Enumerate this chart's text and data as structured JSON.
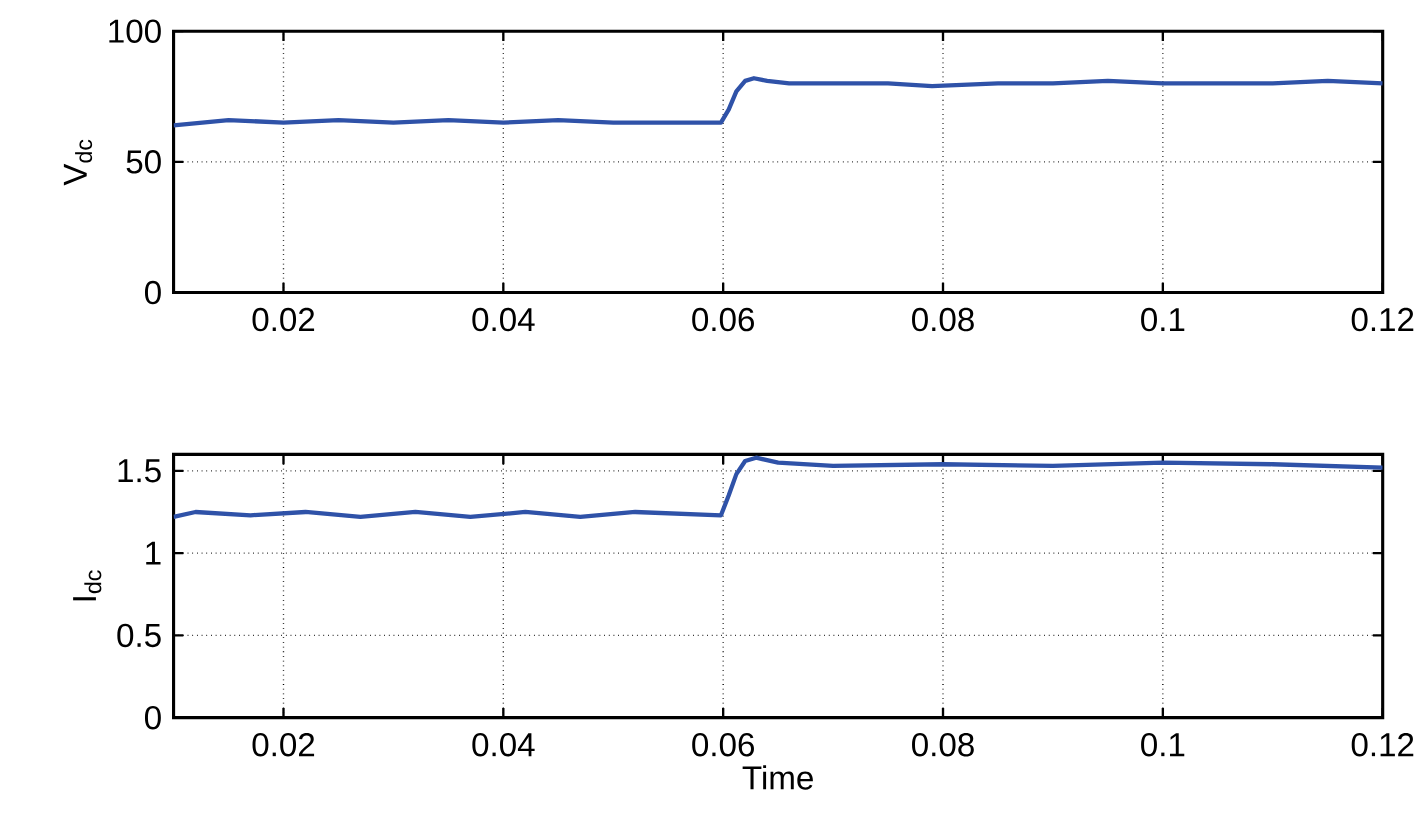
{
  "chart_data": [
    {
      "type": "line",
      "ylabel": "V$_{dc}$",
      "xlim": [
        0.01,
        0.12
      ],
      "ylim": [
        0,
        100
      ],
      "xticks": [
        0.02,
        0.04,
        0.06,
        0.08,
        0.1,
        0.12
      ],
      "yticks": [
        0,
        50,
        100
      ],
      "grid": true,
      "x": [
        0.01,
        0.015,
        0.02,
        0.025,
        0.03,
        0.035,
        0.04,
        0.045,
        0.05,
        0.055,
        0.0598,
        0.0605,
        0.0612,
        0.062,
        0.0628,
        0.064,
        0.066,
        0.07,
        0.075,
        0.079,
        0.085,
        0.09,
        0.095,
        0.1,
        0.105,
        0.11,
        0.115,
        0.12
      ],
      "series": [
        {
          "color": "#2f52a8",
          "values": [
            64,
            66,
            65,
            66,
            65,
            66,
            65,
            66,
            65,
            65,
            65,
            70,
            77,
            81,
            82,
            81,
            80,
            80,
            80,
            79,
            80,
            80,
            81,
            80,
            80,
            80,
            81,
            80
          ]
        }
      ]
    },
    {
      "type": "line",
      "xlabel": "Time",
      "ylabel": "I$_{dc}$",
      "xlim": [
        0.01,
        0.12
      ],
      "ylim": [
        0,
        1.6
      ],
      "xticks": [
        0.02,
        0.04,
        0.06,
        0.08,
        0.1,
        0.12
      ],
      "yticks": [
        0,
        0.5,
        1,
        1.5
      ],
      "grid": true,
      "x": [
        0.01,
        0.012,
        0.017,
        0.022,
        0.027,
        0.032,
        0.037,
        0.042,
        0.047,
        0.052,
        0.0598,
        0.0605,
        0.0612,
        0.062,
        0.063,
        0.065,
        0.07,
        0.08,
        0.09,
        0.1,
        0.11,
        0.12
      ],
      "series": [
        {
          "color": "#2f52a8",
          "values": [
            1.22,
            1.25,
            1.23,
            1.25,
            1.22,
            1.25,
            1.22,
            1.25,
            1.22,
            1.25,
            1.23,
            1.35,
            1.48,
            1.56,
            1.58,
            1.55,
            1.53,
            1.54,
            1.53,
            1.55,
            1.54,
            1.52
          ]
        }
      ]
    }
  ]
}
